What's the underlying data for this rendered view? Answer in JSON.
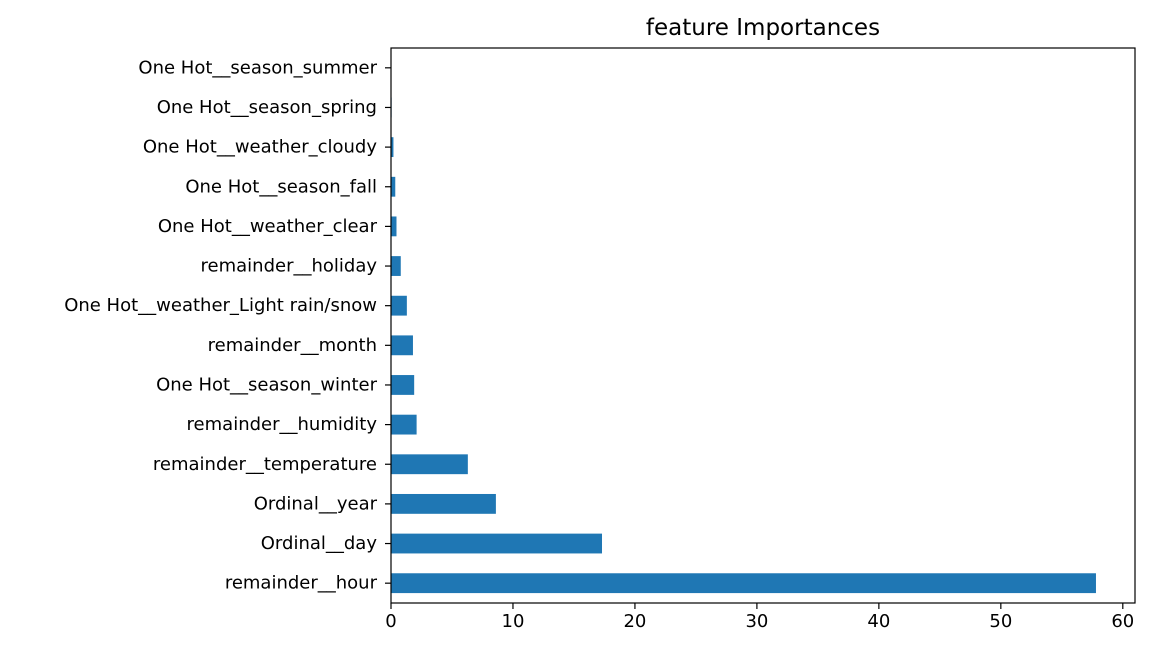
{
  "chart_data": {
    "type": "bar",
    "orientation": "horizontal",
    "title": "feature Importances",
    "xlabel": "",
    "ylabel": "",
    "xlim": [
      0,
      61
    ],
    "xticks": [
      0,
      10,
      20,
      30,
      40,
      50,
      60
    ],
    "grid": false,
    "bar_color": "#1f77b4",
    "categories": [
      "remainder__hour",
      "Ordinal__day",
      "Ordinal__year",
      "remainder__temperature",
      "remainder__humidity",
      "One Hot__season_winter",
      "remainder__month",
      "One Hot__weather_Light rain/snow",
      "remainder__holiday",
      "One Hot__weather_clear",
      "One Hot__season_fall",
      "One Hot__weather_cloudy",
      "One Hot__season_spring",
      "One Hot__season_summer"
    ],
    "values": [
      57.8,
      17.3,
      8.6,
      6.3,
      2.1,
      1.9,
      1.8,
      1.3,
      0.8,
      0.45,
      0.35,
      0.2,
      0.05,
      0.03
    ]
  }
}
